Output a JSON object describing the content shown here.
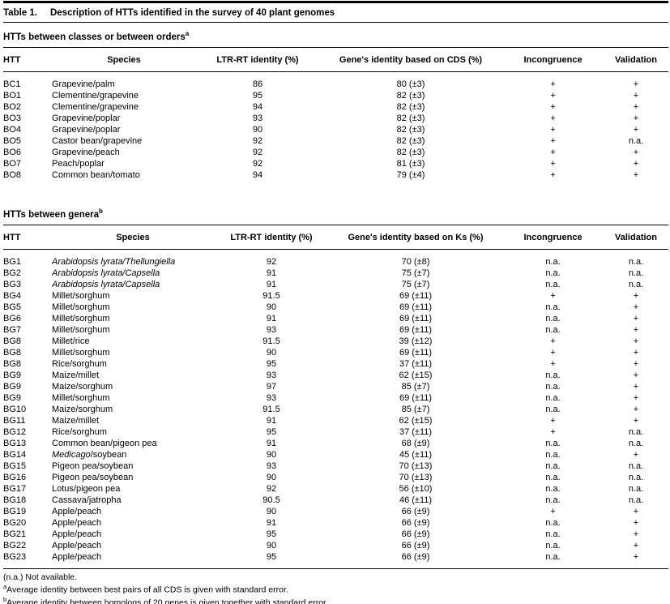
{
  "table": {
    "label": "Table 1.",
    "title": "Description of HTTs identified in the survey of 40 plant genomes",
    "sections": [
      {
        "heading": "HTTs between classes or between orders",
        "heading_sup": "a",
        "columns": [
          "HTT",
          "Species",
          "LTR-RT identity (%)",
          "Gene's identity based on CDS (%)",
          "Incongruence",
          "Validation"
        ],
        "rows": [
          [
            "BC1",
            "Grapevine/palm",
            "86",
            "80 (±3)",
            "+",
            "+"
          ],
          [
            "BO1",
            "Clementine/grapevine",
            "95",
            "82 (±3)",
            "+",
            "+"
          ],
          [
            "BO2",
            "Clementine/grapevine",
            "94",
            "82 (±3)",
            "+",
            "+"
          ],
          [
            "BO3",
            "Grapevine/poplar",
            "93",
            "82 (±3)",
            "+",
            "+"
          ],
          [
            "BO4",
            "Grapevine/poplar",
            "90",
            "82 (±3)",
            "+",
            "+"
          ],
          [
            "BO5",
            "Castor bean/grapevine",
            "92",
            "82 (±3)",
            "+",
            "n.a."
          ],
          [
            "BO6",
            "Grapevine/peach",
            "92",
            "82 (±3)",
            "+",
            "+"
          ],
          [
            "BO7",
            "Peach/poplar",
            "92",
            "81 (±3)",
            "+",
            "+"
          ],
          [
            "BO8",
            "Common bean/tomato",
            "94",
            "79 (±4)",
            "+",
            "+"
          ]
        ]
      },
      {
        "heading": "HTTs between genera",
        "heading_sup": "b",
        "columns": [
          "HTT",
          "Species",
          "LTR-RT identity (%)",
          "Gene's identity based on Ks (%)",
          "Incongruence",
          "Validation"
        ],
        "rows": [
          [
            "BG1",
            {
              "segments": [
                {
                  "text": "Arabidopsis lyrata/Thellungiella",
                  "italic": true
                }
              ]
            },
            "92",
            "70 (±8)",
            "n.a.",
            "n.a."
          ],
          [
            "BG2",
            {
              "segments": [
                {
                  "text": "Arabidopsis lyrata/Capsella",
                  "italic": true
                }
              ]
            },
            "91",
            "75 (±7)",
            "n.a.",
            "n.a."
          ],
          [
            "BG3",
            {
              "segments": [
                {
                  "text": "Arabidopsis lyrata/Capsella",
                  "italic": true
                }
              ]
            },
            "91",
            "75 (±7)",
            "n.a.",
            "n.a."
          ],
          [
            "BG4",
            "Millet/sorghum",
            "91.5",
            "69 (±11)",
            "+",
            "+"
          ],
          [
            "BG5",
            "Millet/sorghum",
            "90",
            "69 (±11)",
            "n.a.",
            "+"
          ],
          [
            "BG6",
            "Millet/sorghum",
            "91",
            "69 (±11)",
            "n.a.",
            "+"
          ],
          [
            "BG7",
            "Millet/sorghum",
            "93",
            "69 (±11)",
            "n.a.",
            "+"
          ],
          [
            "BG8",
            "Millet/rice",
            "91.5",
            "39 (±12)",
            "+",
            "+"
          ],
          [
            "BG8",
            "Millet/sorghum",
            "90",
            "69 (±11)",
            "+",
            "+"
          ],
          [
            "BG8",
            "Rice/sorghum",
            "95",
            "37 (±11)",
            "+",
            "+"
          ],
          [
            "BG9",
            "Maize/millet",
            "93",
            "62 (±15)",
            "n.a.",
            "+"
          ],
          [
            "BG9",
            "Maize/sorghum",
            "97",
            "85 (±7)",
            "n.a.",
            "+"
          ],
          [
            "BG9",
            "Millet/sorghum",
            "93",
            "69 (±11)",
            "n.a.",
            "+"
          ],
          [
            "BG10",
            "Maize/sorghum",
            "91.5",
            "85 (±7)",
            "n.a.",
            "+"
          ],
          [
            "BG11",
            "Maize/millet",
            "91",
            "62 (±15)",
            "+",
            "+"
          ],
          [
            "BG12",
            "Rice/sorghum",
            "95",
            "37 (±11)",
            "+",
            "n.a."
          ],
          [
            "BG13",
            "Common bean/pigeon pea",
            "91",
            "68 (±9)",
            "n.a.",
            "n.a."
          ],
          [
            "BG14",
            {
              "segments": [
                {
                  "text": "Medicago",
                  "italic": true
                },
                {
                  "text": "/soybean",
                  "italic": false
                }
              ]
            },
            "90",
            "45 (±11)",
            "n.a.",
            "+"
          ],
          [
            "BG15",
            "Pigeon pea/soybean",
            "93",
            "70 (±13)",
            "n.a.",
            "n.a."
          ],
          [
            "BG16",
            "Pigeon pea/soybean",
            "90",
            "70 (±13)",
            "n.a.",
            "n.a."
          ],
          [
            "BG17",
            "Lotus/pigeon pea",
            "92",
            "56 (±10)",
            "n.a.",
            "n.a."
          ],
          [
            "BG18",
            "Cassava/jatropha",
            "90.5",
            "46 (±11)",
            "n.a.",
            "n.a."
          ],
          [
            "BG19",
            "Apple/peach",
            "90",
            "66 (±9)",
            "+",
            "+"
          ],
          [
            "BG20",
            "Apple/peach",
            "91",
            "66 (±9)",
            "n.a.",
            "+"
          ],
          [
            "BG21",
            "Apple/peach",
            "95",
            "66 (±9)",
            "n.a.",
            "+"
          ],
          [
            "BG22",
            "Apple/peach",
            "90",
            "66 (±9)",
            "n.a.",
            "+"
          ],
          [
            "BG23",
            "Apple/peach",
            "95",
            "66 (±9)",
            "n.a.",
            "+"
          ]
        ]
      }
    ],
    "footnotes": [
      {
        "sup": "",
        "text": "(n.a.) Not available."
      },
      {
        "sup": "a",
        "text": "Average identity between best pairs of all CDS is given with standard error."
      },
      {
        "sup": "b",
        "text": "Average identity between homologs of 20 genes is given together with standard error."
      }
    ]
  }
}
